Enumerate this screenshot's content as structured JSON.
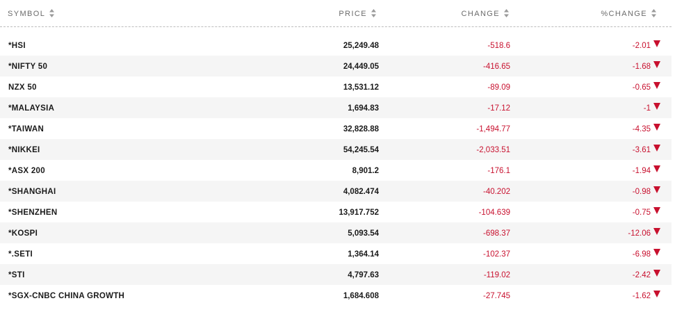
{
  "header": {
    "symbol": "SYMBOL",
    "price": "PRICE",
    "change": "CHANGE",
    "pct_change": "%CHANGE",
    "sort_icon": "sort-up-down-icon"
  },
  "colors": {
    "negative": "#c8102e",
    "header_text": "#6b6b6b",
    "row_alt_bg": "#f5f5f5"
  },
  "rows": [
    {
      "symbol": "*HSI",
      "price": "25,249.48",
      "change": "-518.6",
      "pct_change": "-2.01",
      "direction": "down"
    },
    {
      "symbol": "*NIFTY 50",
      "price": "24,449.05",
      "change": "-416.65",
      "pct_change": "-1.68",
      "direction": "down"
    },
    {
      "symbol": "NZX 50",
      "price": "13,531.12",
      "change": "-89.09",
      "pct_change": "-0.65",
      "direction": "down"
    },
    {
      "symbol": "*MALAYSIA",
      "price": "1,694.83",
      "change": "-17.12",
      "pct_change": "-1",
      "direction": "down"
    },
    {
      "symbol": "*TAIWAN",
      "price": "32,828.88",
      "change": "-1,494.77",
      "pct_change": "-4.35",
      "direction": "down"
    },
    {
      "symbol": "*NIKKEI",
      "price": "54,245.54",
      "change": "-2,033.51",
      "pct_change": "-3.61",
      "direction": "down"
    },
    {
      "symbol": "*ASX 200",
      "price": "8,901.2",
      "change": "-176.1",
      "pct_change": "-1.94",
      "direction": "down"
    },
    {
      "symbol": "*SHANGHAI",
      "price": "4,082.474",
      "change": "-40.202",
      "pct_change": "-0.98",
      "direction": "down"
    },
    {
      "symbol": "*SHENZHEN",
      "price": "13,917.752",
      "change": "-104.639",
      "pct_change": "-0.75",
      "direction": "down"
    },
    {
      "symbol": "*KOSPI",
      "price": "5,093.54",
      "change": "-698.37",
      "pct_change": "-12.06",
      "direction": "down"
    },
    {
      "symbol": "*.SETI",
      "price": "1,364.14",
      "change": "-102.37",
      "pct_change": "-6.98",
      "direction": "down"
    },
    {
      "symbol": "*STI",
      "price": "4,797.63",
      "change": "-119.02",
      "pct_change": "-2.42",
      "direction": "down"
    },
    {
      "symbol": "*SGX-CNBC CHINA GROWTH",
      "price": "1,684.608",
      "change": "-27.745",
      "pct_change": "-1.62",
      "direction": "down"
    }
  ]
}
